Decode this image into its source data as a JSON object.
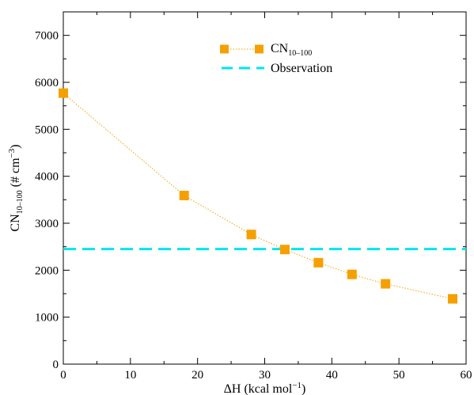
{
  "chart_data": {
    "type": "scatter",
    "xlabel": {
      "main": "ΔH (kcal mol",
      "sup": "−1",
      "close": ")"
    },
    "ylabel": {
      "main": "CN",
      "sub": "10–100",
      "rest": " (# cm",
      "sup": "−3",
      "close": ")"
    },
    "xlim": [
      0,
      60
    ],
    "ylim": [
      0,
      7500
    ],
    "xticks": [
      0,
      10,
      20,
      30,
      40,
      50,
      60
    ],
    "yticks": [
      0,
      1000,
      2000,
      3000,
      4000,
      5000,
      6000,
      7000
    ],
    "grid": false,
    "legend_position": "top-center",
    "series": [
      {
        "name": {
          "main": "CN",
          "sub": "10–100"
        },
        "color": "#f5a000",
        "line_style": "dotted",
        "marker": "square",
        "x": [
          0,
          18,
          28,
          33,
          38,
          43,
          48,
          58
        ],
        "y": [
          5770,
          3590,
          2760,
          2440,
          2160,
          1910,
          1710,
          1390
        ]
      }
    ],
    "reference_lines": [
      {
        "name": "Observation",
        "color": "#00e5ee",
        "style": "dashed",
        "orientation": "horizontal",
        "value": 2450
      }
    ]
  }
}
